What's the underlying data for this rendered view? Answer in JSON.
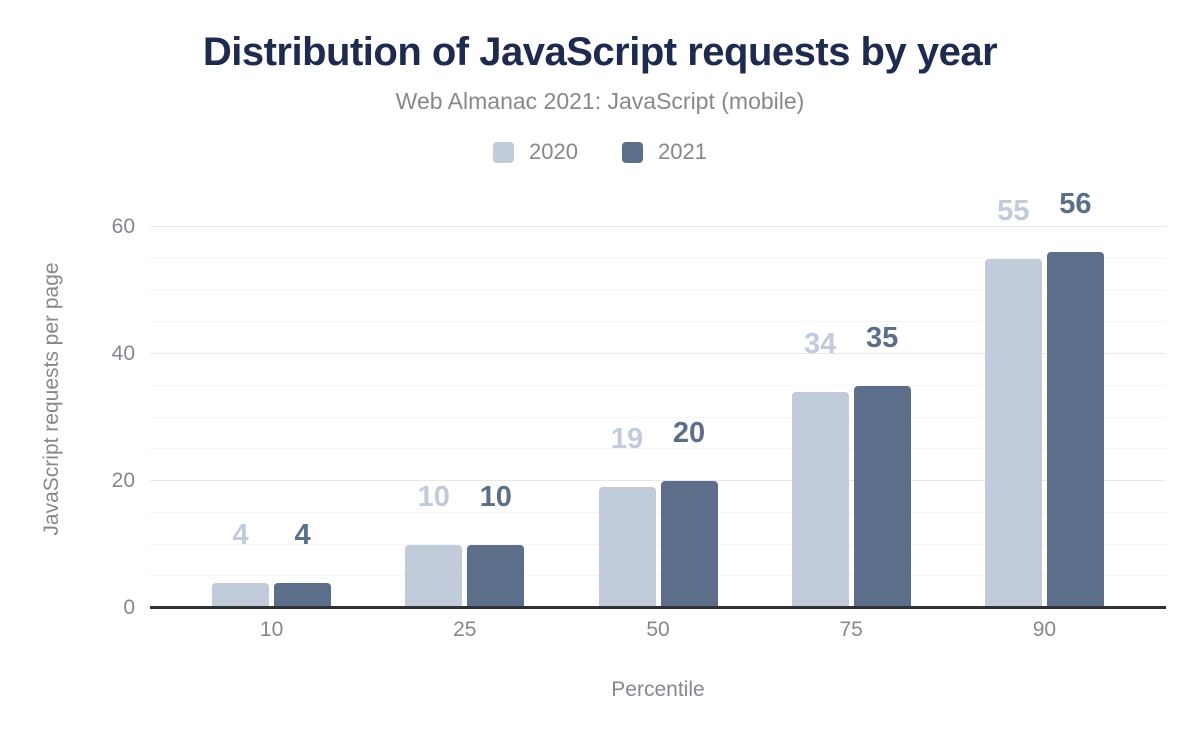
{
  "chart_data": {
    "type": "bar",
    "title": "Distribution of JavaScript requests by year",
    "subtitle": "Web Almanac 2021: JavaScript (mobile)",
    "xlabel": "Percentile",
    "ylabel": "JavaScript requests per page",
    "categories": [
      "10",
      "25",
      "50",
      "75",
      "90"
    ],
    "series": [
      {
        "name": "2020",
        "color": "#c2cbd9",
        "values": [
          4,
          10,
          19,
          34,
          55
        ]
      },
      {
        "name": "2021",
        "color": "#5d6e8b",
        "values": [
          4,
          10,
          20,
          35,
          56
        ]
      }
    ],
    "ylim": [
      0,
      65
    ],
    "yticks": [
      0,
      20,
      40,
      60
    ],
    "minor_gridline_step": 5,
    "major_gridline_step": 20,
    "grid": true,
    "legend_position": "top",
    "data_labels": true
  },
  "colors": {
    "background": "#ffffff",
    "title": "#1e2b4e",
    "muted_text": "#85888d",
    "axis_line": "#2f3338",
    "gridline_minor": "#f4f5f7",
    "gridline_major": "#e6e8eb",
    "series_2020": "#c2cbd9",
    "series_2021": "#5d6e8b"
  }
}
